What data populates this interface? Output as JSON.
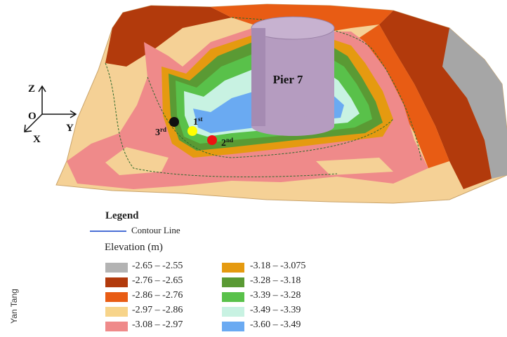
{
  "axes": {
    "z": "Z",
    "o": "O",
    "x": "X",
    "y": "Y"
  },
  "pier_label": "Pier 7",
  "points": [
    {
      "label": "1",
      "sup": "st",
      "color": "#ffff00"
    },
    {
      "label": "2",
      "sup": "nd",
      "color": "#ee1111"
    },
    {
      "label": "3",
      "sup": "rd",
      "color": "#111111"
    }
  ],
  "legend": {
    "title": "Legend",
    "contour_label": "Contour Line",
    "elevation_title": "Elevation (m)",
    "items": [
      {
        "range": "-2.65  –  -2.55",
        "color": "#b3b3b3"
      },
      {
        "range": "-2.76  –  -2.65",
        "color": "#b23a0c"
      },
      {
        "range": "-2.86  –  -2.76",
        "color": "#e85c14"
      },
      {
        "range": "-2.97  –  -2.86",
        "color": "#f7d48a"
      },
      {
        "range": "-3.08  –  -2.97",
        "color": "#ef8a8a"
      },
      {
        "range": "-3.18  –  -3.075",
        "color": "#e59a10"
      },
      {
        "range": "-3.28  –  -3.18",
        "color": "#5a9a34"
      },
      {
        "range": "-3.39  –  -3.28",
        "color": "#59c14a"
      },
      {
        "range": "-3.49  –  -3.39",
        "color": "#c8f2e2"
      },
      {
        "range": "-3.60  –  -3.49",
        "color": "#6aaaf2"
      }
    ]
  },
  "credit": "Yan Tang"
}
